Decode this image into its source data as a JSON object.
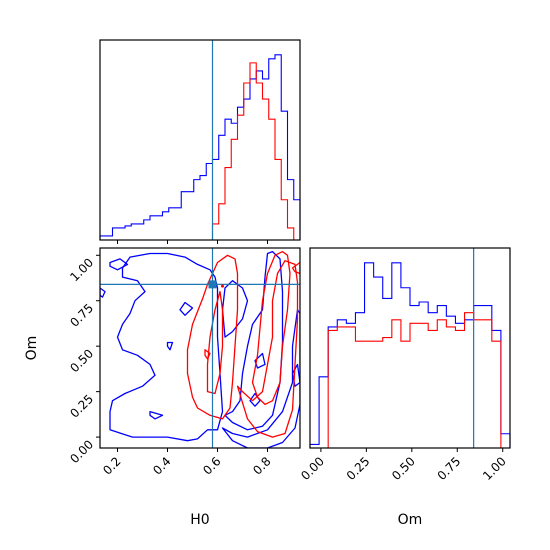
{
  "chart_data": [
    {
      "type": "histogram",
      "panel": "top-left",
      "parameter": "H0",
      "xlim": [
        0.13,
        0.93
      ],
      "truth_x": 0.58,
      "series": [
        {
          "color": "#0000ff",
          "edges": [
            0.13,
            0.155,
            0.18,
            0.205,
            0.23,
            0.255,
            0.28,
            0.305,
            0.33,
            0.355,
            0.38,
            0.405,
            0.43,
            0.455,
            0.48,
            0.505,
            0.53,
            0.555,
            0.58,
            0.605,
            0.63,
            0.655,
            0.68,
            0.705,
            0.73,
            0.755,
            0.78,
            0.805,
            0.83,
            0.855,
            0.88,
            0.905,
            0.93
          ],
          "counts": [
            2,
            2,
            6,
            6,
            7,
            8,
            8,
            10,
            12,
            12,
            14,
            16,
            16,
            24,
            24,
            30,
            32,
            38,
            40,
            52,
            60,
            58,
            66,
            70,
            80,
            84,
            80,
            90,
            92,
            64,
            30,
            20
          ]
        },
        {
          "color": "#ff0000",
          "edges": [
            0.58,
            0.605,
            0.63,
            0.655,
            0.68,
            0.705,
            0.73,
            0.755,
            0.78,
            0.805,
            0.83,
            0.855,
            0.88,
            0.905,
            0.93
          ],
          "counts": [
            8,
            18,
            36,
            50,
            62,
            78,
            88,
            78,
            70,
            60,
            40,
            20,
            6,
            0
          ]
        }
      ]
    },
    {
      "type": "contour",
      "panel": "bottom-left",
      "x_param": "H0",
      "y_param": "Om",
      "xlabel": "H0",
      "ylabel": "Om",
      "xlim": [
        0.13,
        0.93
      ],
      "ylim": [
        -0.06,
        1.04
      ],
      "xticks": [
        "0.2",
        "0.4",
        "0.6",
        "0.8"
      ],
      "yticks": [
        "0.00",
        "0.25",
        "0.50",
        "0.75",
        "1.00"
      ],
      "truth": [
        0.58,
        0.84
      ],
      "blue_contours": [
        [
          [
            0.13,
            0.82
          ],
          [
            0.15,
            0.8
          ],
          [
            0.14,
            0.77
          ],
          [
            0.13,
            0.78
          ]
        ],
        [
          [
            0.17,
            0.96
          ],
          [
            0.21,
            0.98
          ],
          [
            0.24,
            0.95
          ],
          [
            0.2,
            0.92
          ],
          [
            0.17,
            0.94
          ]
        ],
        [
          [
            0.17,
            0.14
          ],
          [
            0.17,
            0.04
          ],
          [
            0.26,
            0.0
          ],
          [
            0.4,
            0.0
          ],
          [
            0.48,
            -0.02
          ],
          [
            0.52,
            -0.01
          ],
          [
            0.56,
            0.04
          ],
          [
            0.6,
            0.04
          ],
          [
            0.62,
            0.14
          ],
          [
            0.61,
            0.35
          ],
          [
            0.6,
            0.55
          ],
          [
            0.6,
            0.72
          ],
          [
            0.6,
            0.82
          ],
          [
            0.59,
            0.88
          ],
          [
            0.57,
            0.92
          ],
          [
            0.52,
            0.95
          ],
          [
            0.47,
            0.99
          ],
          [
            0.4,
            1.01
          ],
          [
            0.33,
            1.01
          ],
          [
            0.25,
            0.99
          ],
          [
            0.22,
            0.93
          ],
          [
            0.22,
            0.88
          ],
          [
            0.28,
            0.86
          ],
          [
            0.31,
            0.8
          ],
          [
            0.27,
            0.75
          ],
          [
            0.25,
            0.68
          ],
          [
            0.22,
            0.62
          ],
          [
            0.2,
            0.55
          ],
          [
            0.22,
            0.48
          ],
          [
            0.28,
            0.45
          ],
          [
            0.33,
            0.4
          ],
          [
            0.35,
            0.34
          ],
          [
            0.3,
            0.28
          ],
          [
            0.23,
            0.24
          ],
          [
            0.18,
            0.2
          ],
          [
            0.17,
            0.14
          ]
        ],
        [
          [
            0.62,
            0.05
          ],
          [
            0.66,
            -0.02
          ],
          [
            0.72,
            -0.06
          ],
          [
            0.8,
            -0.06
          ],
          [
            0.86,
            -0.03
          ],
          [
            0.91,
            0.05
          ],
          [
            0.93,
            0.18
          ],
          [
            0.93,
            0.5
          ],
          [
            0.93,
            0.68
          ],
          [
            0.92,
            0.7
          ],
          [
            0.9,
            0.5
          ],
          [
            0.9,
            0.3
          ],
          [
            0.86,
            0.14
          ],
          [
            0.8,
            0.04
          ],
          [
            0.72,
            0.0
          ],
          [
            0.66,
            0.02
          ],
          [
            0.62,
            0.05
          ]
        ],
        [
          [
            0.63,
            0.12
          ],
          [
            0.66,
            0.08
          ],
          [
            0.72,
            0.04
          ],
          [
            0.78,
            0.06
          ],
          [
            0.82,
            0.12
          ],
          [
            0.85,
            0.3
          ],
          [
            0.86,
            0.52
          ],
          [
            0.86,
            0.8
          ],
          [
            0.85,
            0.98
          ],
          [
            0.82,
            1.02
          ],
          [
            0.8,
            1.01
          ],
          [
            0.79,
            0.88
          ],
          [
            0.78,
            0.7
          ],
          [
            0.74,
            0.62
          ],
          [
            0.72,
            0.5
          ],
          [
            0.7,
            0.35
          ],
          [
            0.69,
            0.2
          ],
          [
            0.66,
            0.14
          ],
          [
            0.63,
            0.12
          ]
        ],
        [
          [
            0.63,
            0.55
          ],
          [
            0.66,
            0.58
          ],
          [
            0.7,
            0.65
          ],
          [
            0.72,
            0.75
          ],
          [
            0.7,
            0.82
          ],
          [
            0.66,
            0.86
          ],
          [
            0.63,
            0.82
          ],
          [
            0.62,
            0.7
          ],
          [
            0.63,
            0.55
          ]
        ],
        [
          [
            0.45,
            0.7
          ],
          [
            0.47,
            0.74
          ],
          [
            0.5,
            0.71
          ],
          [
            0.47,
            0.67
          ],
          [
            0.45,
            0.7
          ]
        ],
        [
          [
            0.4,
            0.52
          ],
          [
            0.42,
            0.52
          ],
          [
            0.41,
            0.48
          ],
          [
            0.4,
            0.5
          ]
        ],
        [
          [
            0.33,
            0.14
          ],
          [
            0.38,
            0.12
          ],
          [
            0.35,
            0.1
          ],
          [
            0.33,
            0.12
          ]
        ],
        [
          [
            0.75,
            0.42
          ],
          [
            0.78,
            0.46
          ],
          [
            0.79,
            0.4
          ],
          [
            0.76,
            0.38
          ],
          [
            0.75,
            0.42
          ]
        ],
        [
          [
            0.73,
            0.2
          ],
          [
            0.75,
            0.24
          ],
          [
            0.77,
            0.2
          ],
          [
            0.75,
            0.17
          ],
          [
            0.73,
            0.2
          ]
        ],
        [
          [
            0.9,
            0.35
          ],
          [
            0.92,
            0.4
          ],
          [
            0.93,
            0.3
          ],
          [
            0.91,
            0.28
          ],
          [
            0.9,
            0.35
          ]
        ]
      ],
      "red_contours": [
        [
          [
            0.5,
            0.22
          ],
          [
            0.48,
            0.35
          ],
          [
            0.48,
            0.48
          ],
          [
            0.5,
            0.62
          ],
          [
            0.54,
            0.76
          ],
          [
            0.56,
            0.84
          ],
          [
            0.6,
            0.96
          ],
          [
            0.64,
            1.0
          ],
          [
            0.67,
            0.98
          ],
          [
            0.68,
            0.9
          ],
          [
            0.68,
            0.7
          ],
          [
            0.67,
            0.5
          ],
          [
            0.66,
            0.3
          ],
          [
            0.65,
            0.16
          ],
          [
            0.62,
            0.1
          ],
          [
            0.57,
            0.12
          ],
          [
            0.52,
            0.16
          ],
          [
            0.5,
            0.22
          ]
        ],
        [
          [
            0.56,
            0.25
          ],
          [
            0.56,
            0.4
          ],
          [
            0.57,
            0.55
          ],
          [
            0.59,
            0.7
          ],
          [
            0.61,
            0.8
          ],
          [
            0.62,
            0.7
          ],
          [
            0.62,
            0.5
          ],
          [
            0.61,
            0.35
          ],
          [
            0.59,
            0.24
          ],
          [
            0.56,
            0.25
          ]
        ],
        [
          [
            0.68,
            0.28
          ],
          [
            0.72,
            0.1
          ],
          [
            0.76,
            0.03
          ],
          [
            0.82,
            0.0
          ],
          [
            0.87,
            0.02
          ],
          [
            0.9,
            0.15
          ],
          [
            0.91,
            0.4
          ],
          [
            0.92,
            0.65
          ],
          [
            0.92,
            0.85
          ],
          [
            0.91,
            0.95
          ],
          [
            0.87,
            0.97
          ],
          [
            0.84,
            0.9
          ],
          [
            0.82,
            0.75
          ],
          [
            0.82,
            0.55
          ],
          [
            0.8,
            0.4
          ],
          [
            0.78,
            0.25
          ],
          [
            0.74,
            0.2
          ],
          [
            0.7,
            0.25
          ],
          [
            0.68,
            0.28
          ]
        ],
        [
          [
            0.74,
            0.3
          ],
          [
            0.76,
            0.22
          ],
          [
            0.79,
            0.18
          ],
          [
            0.82,
            0.2
          ],
          [
            0.85,
            0.3
          ],
          [
            0.86,
            0.5
          ],
          [
            0.88,
            0.7
          ],
          [
            0.89,
            0.9
          ],
          [
            0.88,
            1.0
          ],
          [
            0.86,
            1.02
          ],
          [
            0.83,
            1.0
          ],
          [
            0.8,
            0.9
          ],
          [
            0.78,
            0.75
          ],
          [
            0.77,
            0.6
          ],
          [
            0.76,
            0.45
          ],
          [
            0.74,
            0.3
          ]
        ],
        [
          [
            0.55,
            0.48
          ],
          [
            0.57,
            0.46
          ],
          [
            0.56,
            0.43
          ],
          [
            0.55,
            0.45
          ]
        ],
        [
          [
            0.9,
            0.93
          ],
          [
            0.93,
            0.96
          ],
          [
            0.93,
            0.9
          ],
          [
            0.91,
            0.91
          ]
        ]
      ]
    },
    {
      "type": "histogram",
      "panel": "bottom-right",
      "parameter": "Om",
      "xlabel": "Om",
      "xlim": [
        -0.06,
        1.04
      ],
      "xticks": [
        "0.00",
        "0.25",
        "0.50",
        "0.75",
        "1.00"
      ],
      "truth_x": 0.84,
      "series": [
        {
          "color": "#0000ff",
          "edges": [
            -0.06,
            -0.01,
            0.04,
            0.09,
            0.14,
            0.19,
            0.24,
            0.29,
            0.34,
            0.39,
            0.44,
            0.49,
            0.54,
            0.59,
            0.64,
            0.69,
            0.74,
            0.79,
            0.84,
            0.89,
            0.94,
            0.99,
            1.04
          ],
          "counts": [
            2,
            40,
            68,
            72,
            70,
            76,
            104,
            96,
            84,
            104,
            90,
            80,
            82,
            76,
            80,
            74,
            70,
            72,
            80,
            80,
            66,
            8
          ]
        },
        {
          "color": "#ff0000",
          "edges": [
            -0.06,
            -0.01,
            0.04,
            0.09,
            0.14,
            0.19,
            0.24,
            0.29,
            0.34,
            0.39,
            0.44,
            0.49,
            0.54,
            0.59,
            0.64,
            0.69,
            0.74,
            0.79,
            0.84,
            0.89,
            0.94,
            0.99,
            1.04
          ],
          "counts": [
            0,
            0,
            66,
            68,
            68,
            60,
            60,
            60,
            62,
            72,
            60,
            70,
            70,
            66,
            72,
            68,
            66,
            76,
            72,
            72,
            60,
            0
          ]
        }
      ]
    }
  ]
}
